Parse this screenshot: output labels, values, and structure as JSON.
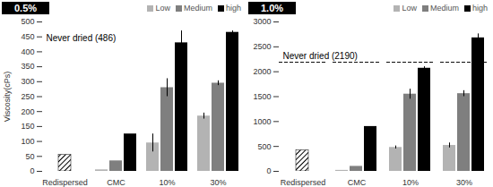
{
  "chart_data": [
    {
      "type": "bar",
      "title": "0.5%",
      "y_label": "Viscosity(cPs)",
      "categories": [
        "Redispersed",
        "CMC",
        "10%",
        "30%"
      ],
      "series": [
        {
          "name": "Low",
          "color": "#b3b3b3",
          "values": [
            null,
            5,
            95,
            185
          ],
          "errors": [
            null,
            null,
            30,
            10
          ]
        },
        {
          "name": "Medium",
          "color": "#7f7f7f",
          "values": [
            null,
            35,
            280,
            295
          ],
          "errors": [
            null,
            null,
            30,
            8
          ]
        },
        {
          "name": "high",
          "color": "#000000",
          "values": [
            null,
            125,
            430,
            465
          ],
          "errors": [
            null,
            null,
            40,
            5
          ]
        }
      ],
      "hatched_bar": {
        "category": "Redispersed",
        "value": 55
      },
      "annotation": "Never dried (486)",
      "ylim": [
        0,
        500
      ],
      "yticks": [
        0,
        50,
        100,
        150,
        200,
        250,
        300,
        350,
        400,
        450,
        500
      ],
      "legend": "top-right"
    },
    {
      "type": "bar",
      "title": "1.0%",
      "categories": [
        "Redispersed",
        "CMC",
        "10%",
        "30%"
      ],
      "series": [
        {
          "name": "Low",
          "color": "#b3b3b3",
          "values": [
            null,
            20,
            480,
            520
          ],
          "errors": [
            null,
            null,
            30,
            50
          ]
        },
        {
          "name": "Medium",
          "color": "#7f7f7f",
          "values": [
            null,
            100,
            1550,
            1560
          ],
          "errors": [
            null,
            null,
            100,
            60
          ]
        },
        {
          "name": "high",
          "color": "#000000",
          "values": [
            null,
            900,
            2070,
            2680
          ],
          "errors": [
            null,
            null,
            30,
            80
          ]
        }
      ],
      "hatched_bar": {
        "category": "Redispersed",
        "value": 420
      },
      "reference_line": {
        "value": 2190,
        "label": "Never dried (2190)",
        "line_style": "dashed"
      },
      "ylim": [
        0,
        3000
      ],
      "yticks": [
        0,
        500,
        1000,
        1500,
        2000,
        2500,
        3000
      ],
      "legend": "top-right"
    }
  ]
}
